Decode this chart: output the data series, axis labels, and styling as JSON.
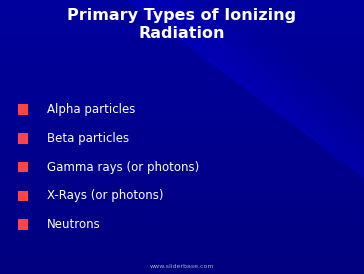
{
  "title": "Primary Types of Ionizing\nRadiation",
  "bullet_items": [
    "Alpha particles",
    "Beta particles",
    "Gamma rays (or photons)",
    "X-Rays (or photons)",
    "Neutrons"
  ],
  "background_color": "#000099",
  "title_color": "#ffffff",
  "bullet_text_color": "#ffffff",
  "bullet_marker_color": "#ff4444",
  "watermark_text": "www.sliderbase.com",
  "watermark_color": "#aaaacc",
  "title_fontsize": 11.5,
  "bullet_fontsize": 8.5,
  "watermark_fontsize": 4.5
}
